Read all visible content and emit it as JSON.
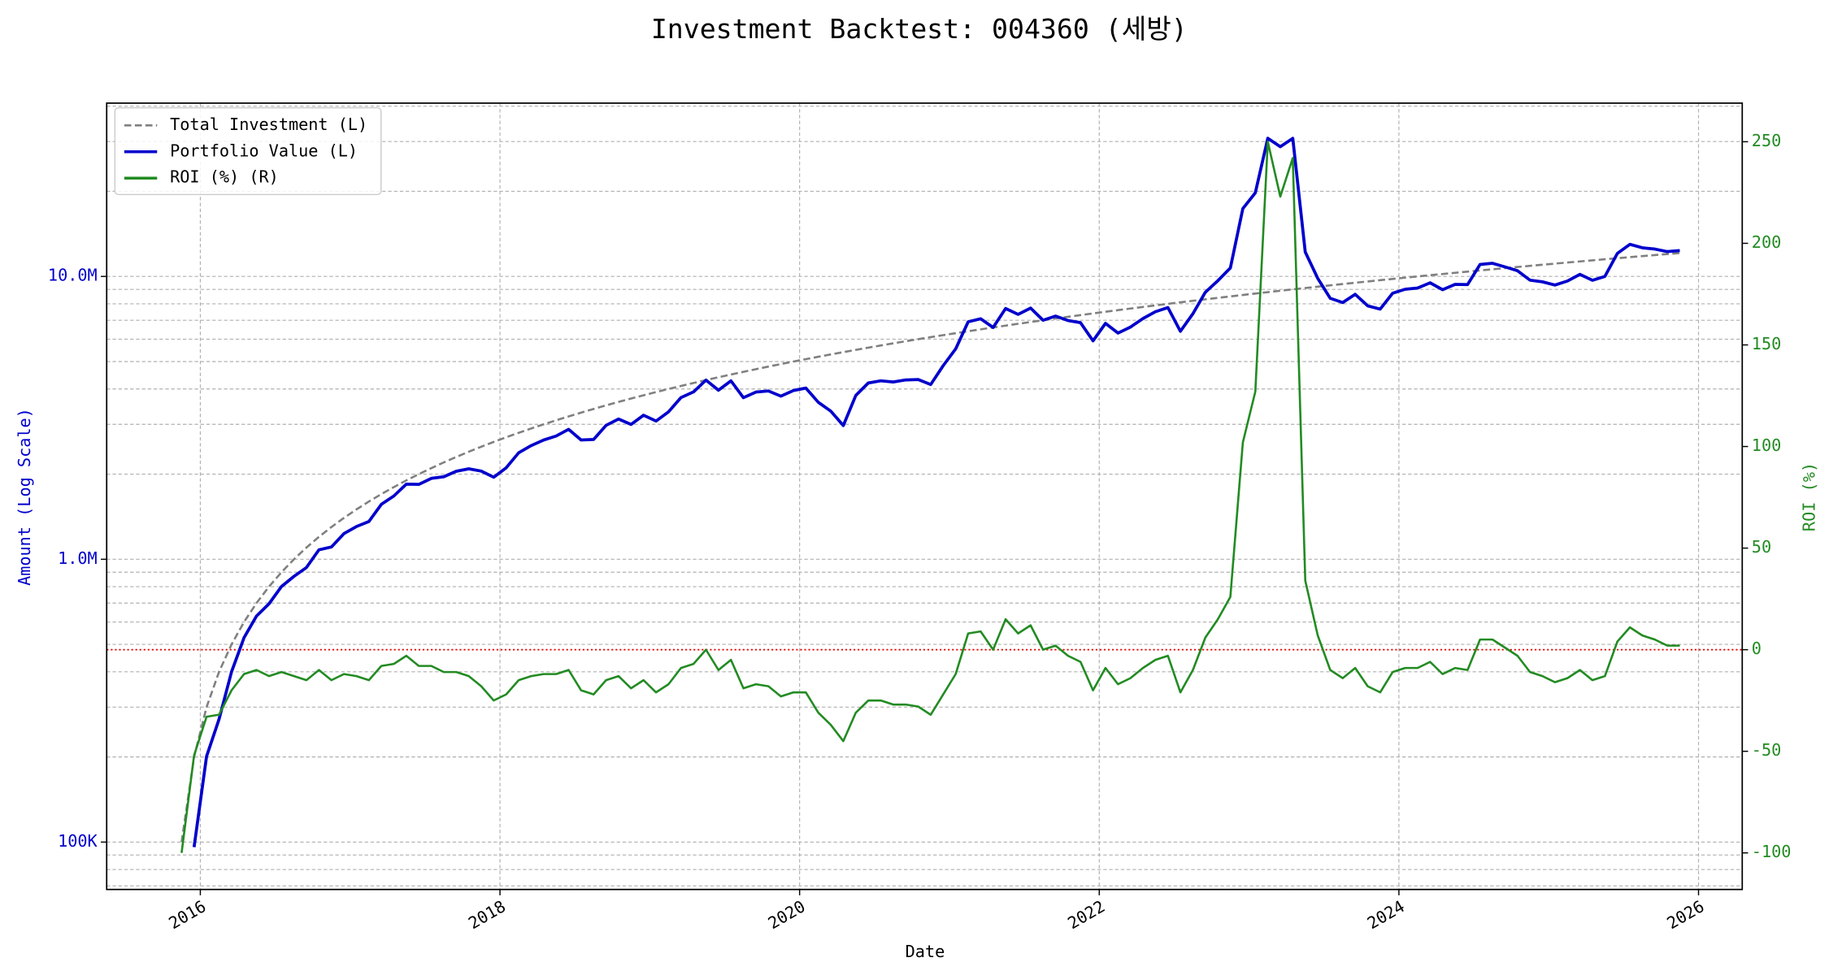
{
  "chart_data": {
    "type": "line",
    "title": "Investment Backtest: 004360 (세방)",
    "xlabel": "Date",
    "ylabel": "Amount (Log Scale)",
    "y2label": "ROI (%)",
    "yscale": "log",
    "grid": true,
    "legend": "upper left",
    "ylabel_color": "#0000cc",
    "y2label_color": "#228b22",
    "xlim": [
      "2015-05",
      "2026-04"
    ],
    "xticks": [
      "2016",
      "2018",
      "2020",
      "2022",
      "2024",
      "2026"
    ],
    "ylim": [
      68000,
      41000000
    ],
    "yticks": [
      {
        "value": 100000,
        "label": "100K"
      },
      {
        "value": 1000000,
        "label": "1.0M"
      },
      {
        "value": 10000000,
        "label": "10.0M"
      }
    ],
    "yminorticks": [
      70000,
      80000,
      90000,
      200000,
      300000,
      400000,
      500000,
      600000,
      700000,
      800000,
      900000,
      2000000,
      3000000,
      4000000,
      5000000,
      6000000,
      7000000,
      8000000,
      9000000,
      20000000,
      30000000,
      40000000
    ],
    "y2lim": [
      -118,
      269
    ],
    "y2ticks": [
      -100,
      -50,
      0,
      50,
      100,
      150,
      200,
      250
    ],
    "hline": {
      "value": 0,
      "axis": "y2",
      "color": "#e00000"
    },
    "x": [
      "2015-11",
      "2015-12",
      "2016-01",
      "2016-02",
      "2016-03",
      "2016-04",
      "2016-05",
      "2016-06",
      "2016-07",
      "2016-08",
      "2016-09",
      "2016-10",
      "2016-11",
      "2016-12",
      "2017-01",
      "2017-02",
      "2017-03",
      "2017-04",
      "2017-05",
      "2017-06",
      "2017-07",
      "2017-08",
      "2017-09",
      "2017-10",
      "2017-11",
      "2017-12",
      "2018-01",
      "2018-02",
      "2018-03",
      "2018-04",
      "2018-05",
      "2018-06",
      "2018-07",
      "2018-08",
      "2018-09",
      "2018-10",
      "2018-11",
      "2018-12",
      "2019-01",
      "2019-02",
      "2019-03",
      "2019-04",
      "2019-05",
      "2019-06",
      "2019-07",
      "2019-08",
      "2019-09",
      "2019-10",
      "2019-11",
      "2019-12",
      "2020-01",
      "2020-02",
      "2020-03",
      "2020-04",
      "2020-05",
      "2020-06",
      "2020-07",
      "2020-08",
      "2020-09",
      "2020-10",
      "2020-11",
      "2020-12",
      "2021-01",
      "2021-02",
      "2021-03",
      "2021-04",
      "2021-05",
      "2021-06",
      "2021-07",
      "2021-08",
      "2021-09",
      "2021-10",
      "2021-11",
      "2021-12",
      "2022-01",
      "2022-02",
      "2022-03",
      "2022-04",
      "2022-05",
      "2022-06",
      "2022-07",
      "2022-08",
      "2022-09",
      "2022-10",
      "2022-11",
      "2022-12",
      "2023-01",
      "2023-02",
      "2023-03",
      "2023-04",
      "2023-05",
      "2023-06",
      "2023-07",
      "2023-08",
      "2023-09",
      "2023-10",
      "2023-11",
      "2023-12",
      "2024-01",
      "2024-02",
      "2024-03",
      "2024-04",
      "2024-05",
      "2024-06",
      "2024-07",
      "2024-08",
      "2024-09",
      "2024-10",
      "2024-11",
      "2024-12",
      "2025-01",
      "2025-02",
      "2025-03",
      "2025-04",
      "2025-05",
      "2025-06",
      "2025-07",
      "2025-08",
      "2025-09",
      "2025-10",
      "2025-11"
    ],
    "series": [
      {
        "name": "Total Investment (L)",
        "color": "#808080",
        "linestyle": "dashed",
        "axis": "y",
        "values": [
          100000,
          200000,
          300000,
          400000,
          500000,
          600000,
          700000,
          800000,
          900000,
          1000000,
          1100000,
          1200000,
          1300000,
          1400000,
          1500000,
          1600000,
          1700000,
          1800000,
          1900000,
          2000000,
          2100000,
          2200000,
          2300000,
          2400000,
          2500000,
          2600000,
          2700000,
          2800000,
          2900000,
          3000000,
          3100000,
          3200000,
          3300000,
          3400000,
          3500000,
          3600000,
          3700000,
          3800000,
          3900000,
          4000000,
          4100000,
          4200000,
          4300000,
          4400000,
          4500000,
          4600000,
          4700000,
          4800000,
          4900000,
          5000000,
          5100000,
          5200000,
          5300000,
          5400000,
          5500000,
          5600000,
          5700000,
          5800000,
          5900000,
          6000000,
          6100000,
          6200000,
          6300000,
          6400000,
          6500000,
          6600000,
          6700000,
          6800000,
          6900000,
          7000000,
          7100000,
          7200000,
          7300000,
          7400000,
          7500000,
          7600000,
          7700000,
          7800000,
          7900000,
          8000000,
          8100000,
          8200000,
          8300000,
          8400000,
          8500000,
          8600000,
          8700000,
          8800000,
          8900000,
          9000000,
          9100000,
          9200000,
          9300000,
          9400000,
          9500000,
          9600000,
          9700000,
          9800000,
          9900000,
          10000000,
          10100000,
          10200000,
          10300000,
          10400000,
          10500000,
          10600000,
          10700000,
          10800000,
          10900000,
          11000000,
          11100000,
          11200000,
          11300000,
          11400000,
          11500000,
          11600000,
          11700000,
          11800000,
          11900000,
          12000000,
          12100000
        ]
      },
      {
        "name": "Portfolio Value (L)",
        "color": "#0000cc",
        "linestyle": "solid",
        "axis": "y",
        "values": [
          null,
          96000,
          201000,
          272000,
          400000,
          528000,
          630000,
          696000,
          801000,
          870000,
          935000,
          1080000,
          1105000,
          1232000,
          1305000,
          1360000,
          1564000,
          1674000,
          1843000,
          1840000,
          1932000,
          1958000,
          2047000,
          2088000,
          2050000,
          1950000,
          2106000,
          2380000,
          2523000,
          2640000,
          2728000,
          2880000,
          2640000,
          2652000,
          2975000,
          3132000,
          2997000,
          3230000,
          3081000,
          3320000,
          3731000,
          3906000,
          4300000,
          3960000,
          4275000,
          3726000,
          3901000,
          3936000,
          3773000,
          3950000,
          4029000,
          3588000,
          3339000,
          2970000,
          3795000,
          4200000,
          4275000,
          4234000,
          4307000,
          4320000,
          4148000,
          4836000,
          5544000,
          6912000,
          7085000,
          6600000,
          7705000,
          7344000,
          7728000,
          7000000,
          7242000,
          6984000,
          6862000,
          5920000,
          6825000,
          6308000,
          6622000,
          7098000,
          7505000,
          7760000,
          6399000,
          7380000,
          8798000,
          9660000,
          10710000,
          17372000,
          19749000,
          30800000,
          28747000,
          30780000,
          12194000,
          9844000,
          8370000,
          8084000,
          8645000,
          7872000,
          7663000,
          8722000,
          9009000,
          9100000,
          9494000,
          8976000,
          9373000,
          9360000,
          11025000,
          11130000,
          10807000,
          10476000,
          9701000,
          9570000,
          9324000,
          9632000,
          10170000,
          9690000,
          10005000,
          12064000,
          12987000,
          12626000,
          12495000,
          12240000,
          12342000
        ]
      },
      {
        "name": "ROI (%) (R)",
        "color": "#228b22",
        "linestyle": "solid",
        "axis": "y2",
        "values": [
          -100,
          -52,
          -33,
          -32,
          -20,
          -12,
          -10,
          -13,
          -11,
          -13,
          -15,
          -10,
          -15,
          -12,
          -13,
          -15,
          -8,
          -7,
          -3,
          -8,
          -8,
          -11,
          -11,
          -13,
          -18,
          -25,
          -22,
          -15,
          -13,
          -12,
          -12,
          -10,
          -20,
          -22,
          -15,
          -13,
          -19,
          -15,
          -21,
          -17,
          -9,
          -7,
          0,
          -10,
          -5,
          -19,
          -17,
          -18,
          -23,
          -21,
          -21,
          -31,
          -37,
          -45,
          -31,
          -25,
          -25,
          -27,
          -27,
          -28,
          -32,
          -22,
          -12,
          8,
          9,
          0,
          15,
          8,
          12,
          0,
          2,
          -3,
          -6,
          -20,
          -9,
          -17,
          -14,
          -9,
          -5,
          -3,
          -21,
          -10,
          6,
          15,
          26,
          102,
          127,
          250,
          223,
          242,
          34,
          7,
          -10,
          -14,
          -9,
          -18,
          -21,
          -11,
          -9,
          -9,
          -6,
          -12,
          -9,
          -10,
          5,
          5,
          1,
          -3,
          -11,
          -13,
          -16,
          -14,
          -10,
          -15,
          -13,
          4,
          11,
          7,
          5,
          2,
          2
        ]
      }
    ]
  }
}
